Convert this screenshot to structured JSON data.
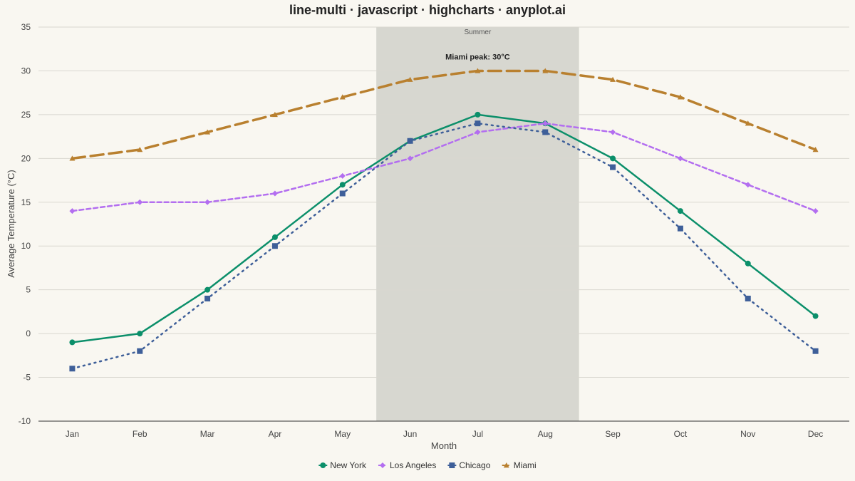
{
  "title": "line-multi · javascript · highcharts · anyplot.ai",
  "chart_data": {
    "type": "line",
    "title": "line-multi · javascript · highcharts · anyplot.ai",
    "xlabel": "Month",
    "ylabel": "Average Temperature (°C)",
    "ylim": [
      -10,
      35
    ],
    "yticks": [
      "35",
      "30",
      "25",
      "20",
      "15",
      "10",
      "5",
      "0",
      "-5",
      "-10"
    ],
    "categories": [
      "Jan",
      "Feb",
      "Mar",
      "Apr",
      "May",
      "Jun",
      "Jul",
      "Aug",
      "Sep",
      "Oct",
      "Nov",
      "Dec"
    ],
    "grid": true,
    "legend_position": "bottom-center",
    "plot_band": {
      "from_category": "Jun",
      "to_category": "Aug",
      "label": "Summer",
      "color": "#d7d7d0"
    },
    "annotation": {
      "text": "Miami peak: 30°C",
      "category": "Jul",
      "series": "Miami"
    },
    "series": [
      {
        "name": "New York",
        "color": "#0b8f6a",
        "marker": "circle",
        "dash": "solid",
        "values": [
          -1,
          0,
          5,
          11,
          17,
          22,
          25,
          24,
          20,
          14,
          8,
          2
        ]
      },
      {
        "name": "Los Angeles",
        "color": "#b36ef0",
        "marker": "diamond",
        "dash": "dashed",
        "values": [
          14,
          15,
          15,
          16,
          18,
          20,
          23,
          24,
          23,
          20,
          17,
          14
        ]
      },
      {
        "name": "Chicago",
        "color": "#3e5f99",
        "marker": "square",
        "dash": "dotted",
        "values": [
          -4,
          -2,
          4,
          10,
          16,
          22,
          24,
          23,
          19,
          12,
          4,
          -2
        ]
      },
      {
        "name": "Miami",
        "color": "#b9802f",
        "marker": "triangle",
        "dash": "longdash",
        "values": [
          20,
          21,
          23,
          25,
          27,
          29,
          30,
          30,
          29,
          27,
          24,
          21
        ]
      }
    ]
  }
}
